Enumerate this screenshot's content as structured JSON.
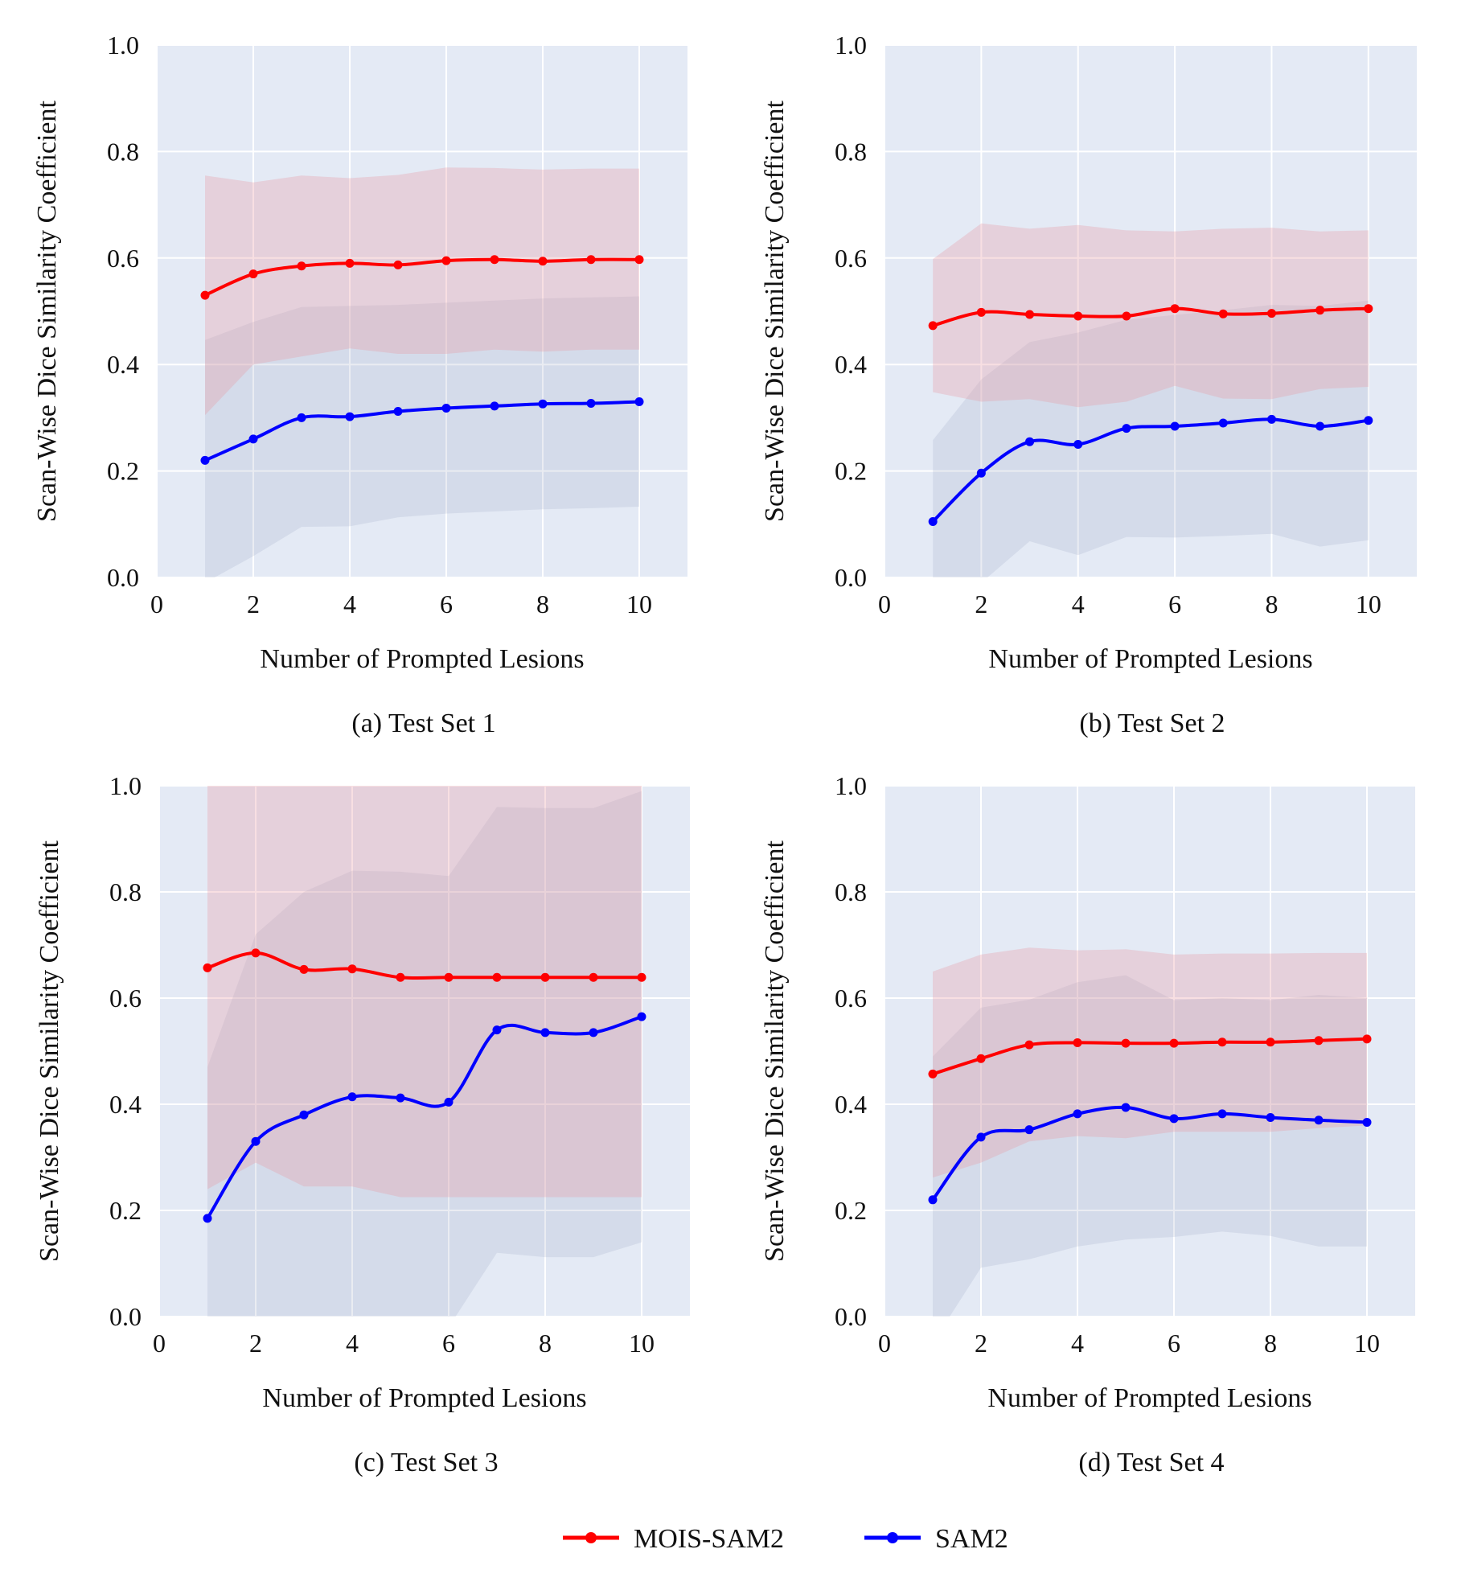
{
  "figure": {
    "legend": [
      {
        "name": "MOIS-SAM2",
        "color": "#ff0000"
      },
      {
        "name": "SAM2",
        "color": "#0000ff"
      }
    ]
  },
  "chart_data": [
    {
      "type": "line",
      "caption": "(a) Test Set 1",
      "xlabel": "Number of Prompted Lesions",
      "ylabel": "Scan-Wise Dice Similarity Coefficient",
      "xlim": [
        0,
        11
      ],
      "ylim": [
        0.0,
        1.0
      ],
      "xticks": [
        "0",
        "2",
        "4",
        "6",
        "8",
        "10"
      ],
      "yticks": [
        "0.0",
        "0.2",
        "0.4",
        "0.6",
        "0.8",
        "1.0"
      ],
      "grid": true,
      "x": [
        1,
        2,
        3,
        4,
        5,
        6,
        7,
        8,
        9,
        10
      ],
      "series": [
        {
          "name": "MOIS-SAM2",
          "color": "#ff0000",
          "values": [
            0.53,
            0.57,
            0.585,
            0.59,
            0.587,
            0.595,
            0.597,
            0.594,
            0.597,
            0.597
          ],
          "lower": [
            0.305,
            0.4,
            0.415,
            0.43,
            0.42,
            0.42,
            0.428,
            0.424,
            0.428,
            0.428
          ],
          "upper": [
            0.755,
            0.742,
            0.755,
            0.75,
            0.756,
            0.77,
            0.769,
            0.766,
            0.768,
            0.768
          ]
        },
        {
          "name": "SAM2",
          "color": "#0000ff",
          "values": [
            0.22,
            0.26,
            0.3,
            0.302,
            0.312,
            0.318,
            0.322,
            0.326,
            0.327,
            0.33
          ],
          "lower": [
            -0.01,
            0.04,
            0.095,
            0.096,
            0.113,
            0.12,
            0.124,
            0.128,
            0.13,
            0.133
          ],
          "upper": [
            0.446,
            0.48,
            0.508,
            0.51,
            0.512,
            0.516,
            0.52,
            0.524,
            0.526,
            0.528
          ]
        }
      ]
    },
    {
      "type": "line",
      "caption": "(b) Test Set 2",
      "xlabel": "Number of Prompted Lesions",
      "ylabel": "Scan-Wise Dice Similarity Coefficient",
      "xlim": [
        0,
        11
      ],
      "ylim": [
        0.0,
        1.0
      ],
      "xticks": [
        "0",
        "2",
        "4",
        "6",
        "8",
        "10"
      ],
      "yticks": [
        "0.0",
        "0.2",
        "0.4",
        "0.6",
        "0.8",
        "1.0"
      ],
      "grid": true,
      "x": [
        1,
        2,
        3,
        4,
        5,
        6,
        7,
        8,
        9,
        10
      ],
      "series": [
        {
          "name": "MOIS-SAM2",
          "color": "#ff0000",
          "values": [
            0.473,
            0.498,
            0.494,
            0.491,
            0.491,
            0.505,
            0.495,
            0.496,
            0.502,
            0.505
          ],
          "lower": [
            0.348,
            0.33,
            0.335,
            0.32,
            0.33,
            0.36,
            0.336,
            0.335,
            0.354,
            0.358
          ],
          "upper": [
            0.598,
            0.665,
            0.655,
            0.662,
            0.652,
            0.65,
            0.655,
            0.657,
            0.65,
            0.652
          ]
        },
        {
          "name": "SAM2",
          "color": "#0000ff",
          "values": [
            0.105,
            0.196,
            0.255,
            0.25,
            0.28,
            0.284,
            0.29,
            0.297,
            0.284,
            0.295
          ],
          "lower": [
            -0.05,
            -0.01,
            0.068,
            0.042,
            0.076,
            0.075,
            0.078,
            0.082,
            0.058,
            0.07
          ],
          "upper": [
            0.258,
            0.372,
            0.442,
            0.46,
            0.484,
            0.493,
            0.502,
            0.512,
            0.51,
            0.52
          ]
        }
      ]
    },
    {
      "type": "line",
      "caption": "(c) Test Set 3",
      "xlabel": "Number of Prompted Lesions",
      "ylabel": "Scan-Wise Dice Similarity Coefficient",
      "xlim": [
        0,
        11
      ],
      "ylim": [
        0.0,
        1.0
      ],
      "xticks": [
        "0",
        "2",
        "4",
        "6",
        "8",
        "10"
      ],
      "yticks": [
        "0.0",
        "0.2",
        "0.4",
        "0.6",
        "0.8",
        "1.0"
      ],
      "grid": true,
      "x": [
        1,
        2,
        3,
        4,
        5,
        6,
        7,
        8,
        9,
        10
      ],
      "series": [
        {
          "name": "MOIS-SAM2",
          "color": "#ff0000",
          "values": [
            0.657,
            0.685,
            0.654,
            0.655,
            0.639,
            0.639,
            0.639,
            0.639,
            0.639,
            0.639
          ],
          "lower": [
            0.24,
            0.29,
            0.245,
            0.245,
            0.225,
            0.225,
            0.225,
            0.225,
            0.225,
            0.225
          ],
          "upper": [
            1.0,
            1.0,
            1.0,
            1.0,
            1.0,
            1.0,
            1.0,
            1.0,
            1.0,
            1.0
          ]
        },
        {
          "name": "SAM2",
          "color": "#0000ff",
          "values": [
            0.185,
            0.33,
            0.38,
            0.414,
            0.412,
            0.404,
            0.54,
            0.535,
            0.535,
            0.565
          ],
          "lower": [
            -0.1,
            -0.05,
            -0.02,
            -0.01,
            -0.01,
            -0.02,
            0.12,
            0.112,
            0.112,
            0.14
          ],
          "upper": [
            0.47,
            0.72,
            0.8,
            0.84,
            0.838,
            0.83,
            0.96,
            0.958,
            0.958,
            0.99
          ]
        }
      ]
    },
    {
      "type": "line",
      "caption": "(d) Test Set 4",
      "xlabel": "Number of Prompted Lesions",
      "ylabel": "Scan-Wise Dice Similarity Coefficient",
      "xlim": [
        0,
        11
      ],
      "ylim": [
        0.0,
        1.0
      ],
      "xticks": [
        "0",
        "2",
        "4",
        "6",
        "8",
        "10"
      ],
      "yticks": [
        "0.0",
        "0.2",
        "0.4",
        "0.6",
        "0.8",
        "1.0"
      ],
      "grid": true,
      "x": [
        1,
        2,
        3,
        4,
        5,
        6,
        7,
        8,
        9,
        10
      ],
      "series": [
        {
          "name": "MOIS-SAM2",
          "color": "#ff0000",
          "values": [
            0.457,
            0.486,
            0.512,
            0.516,
            0.515,
            0.515,
            0.517,
            0.517,
            0.52,
            0.523
          ],
          "lower": [
            0.262,
            0.29,
            0.33,
            0.34,
            0.336,
            0.348,
            0.348,
            0.348,
            0.355,
            0.36
          ],
          "upper": [
            0.65,
            0.682,
            0.695,
            0.69,
            0.692,
            0.682,
            0.684,
            0.684,
            0.685,
            0.685
          ]
        },
        {
          "name": "SAM2",
          "color": "#0000ff",
          "values": [
            0.22,
            0.338,
            0.352,
            0.382,
            0.394,
            0.373,
            0.382,
            0.375,
            0.37,
            0.366
          ],
          "lower": [
            -0.05,
            0.092,
            0.108,
            0.132,
            0.145,
            0.15,
            0.16,
            0.152,
            0.132,
            0.132
          ],
          "upper": [
            0.49,
            0.582,
            0.597,
            0.63,
            0.643,
            0.596,
            0.6,
            0.596,
            0.606,
            0.6
          ]
        }
      ]
    }
  ]
}
